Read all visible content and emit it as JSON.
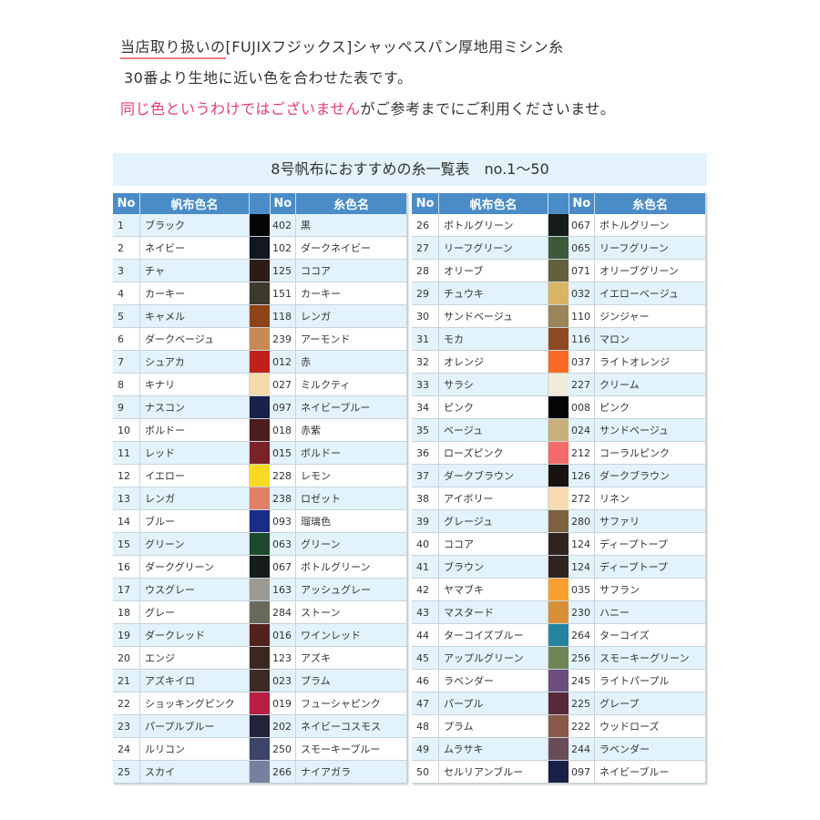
{
  "intro": {
    "line1_underlined": "当店取り扱いの",
    "line1_rest": "[FUJIXフジックス]シャッペスパン厚地用ミシン糸",
    "line2": "30番より生地に近い色を合わせた表です。",
    "line3_highlight": "同じ色というわけではございません",
    "line3_rest": "がご参考までにご利用くださいませ。"
  },
  "colors": {
    "header": "#4a8cc8",
    "highlight": "#e8387a",
    "band": "#e3f2fb",
    "row_alt": "#e3f3fc"
  },
  "table_title": "8号帆布におすすめの糸一覧表　no.1〜50",
  "headers": {
    "no": "No",
    "fabric": "帆布色名",
    "thread_no": "No",
    "thread": "糸色名"
  },
  "rows": [
    [
      "1",
      "ブラック",
      "#050505",
      "402",
      "黒"
    ],
    [
      "2",
      "ネイビー",
      "#131722",
      "102",
      "ダークネイビー"
    ],
    [
      "3",
      "チャ",
      "#2e1c14",
      "125",
      "ココア"
    ],
    [
      "4",
      "カーキー",
      "#3d3a2c",
      "151",
      "カーキー"
    ],
    [
      "5",
      "キャメル",
      "#8e4418",
      "118",
      "レンガ"
    ],
    [
      "6",
      "ダークベージュ",
      "#c58a55",
      "239",
      "アーモンド"
    ],
    [
      "7",
      "シュアカ",
      "#c0201c",
      "012",
      "赤"
    ],
    [
      "8",
      "キナリ",
      "#f6d9ab",
      "027",
      "ミルクティ"
    ],
    [
      "9",
      "ナスコン",
      "#17214a",
      "097",
      "ネイビーブルー"
    ],
    [
      "10",
      "ボルドー",
      "#4d1c1e",
      "018",
      "赤紫"
    ],
    [
      "11",
      "レッド",
      "#7a2228",
      "015",
      "ボルドー"
    ],
    [
      "12",
      "イエロー",
      "#f8da22",
      "228",
      "レモン"
    ],
    [
      "13",
      "レンガ",
      "#e08068",
      "238",
      "ロゼット"
    ],
    [
      "14",
      "ブルー",
      "#1b2c88",
      "093",
      "瑠璃色"
    ],
    [
      "15",
      "グリーン",
      "#1d4a2c",
      "063",
      "グリーン"
    ],
    [
      "16",
      "ダークグリーン",
      "#161c1a",
      "067",
      "ボトルグリーン"
    ],
    [
      "17",
      "ウスグレー",
      "#9c9a92",
      "163",
      "アッシュグレー"
    ],
    [
      "18",
      "グレー",
      "#6a6a5c",
      "284",
      "ストーン"
    ],
    [
      "19",
      "ダークレッド",
      "#52221e",
      "016",
      "ワインレッド"
    ],
    [
      "20",
      "エンジ",
      "#3c2620",
      "123",
      "アズキ"
    ],
    [
      "21",
      "アズキイロ",
      "#3e2a22",
      "023",
      "プラム"
    ],
    [
      "22",
      "ショッキングピンク",
      "#b81e44",
      "019",
      "フューシャピンク"
    ],
    [
      "23",
      "パープルブルー",
      "#23223a",
      "202",
      "ネイビーコスモス"
    ],
    [
      "24",
      "ルリコン",
      "#3c4468",
      "250",
      "スモーキーブルー"
    ],
    [
      "25",
      "スカイ",
      "#76809e",
      "266",
      "ナイアガラ"
    ],
    [
      "26",
      "ボトルグリーン",
      "#161c1a",
      "067",
      "ボトルグリーン"
    ],
    [
      "27",
      "リーフグリーン",
      "#3c5a3a",
      "065",
      "リーフグリーン"
    ],
    [
      "28",
      "オリーブ",
      "#65603c",
      "071",
      "オリーブグリーン"
    ],
    [
      "29",
      "チュウキ",
      "#d8b466",
      "032",
      "イエローベージュ"
    ],
    [
      "30",
      "サンドベージュ",
      "#9a8458",
      "110",
      "ジンジャー"
    ],
    [
      "31",
      "モカ",
      "#8e4a22",
      "116",
      "マロン"
    ],
    [
      "32",
      "オレンジ",
      "#fa6a24",
      "037",
      "ライトオレンジ"
    ],
    [
      "33",
      "サラシ",
      "#f0ead8",
      "227",
      "クリーム"
    ],
    [
      "34",
      "ピンク",
      "#050505",
      "008",
      "ピンク"
    ],
    [
      "35",
      "ベージュ",
      "#c8b07a",
      "024",
      "サンドベージュ"
    ],
    [
      "36",
      "ローズピンク",
      "#f46c6a",
      "212",
      "コーラルピンク"
    ],
    [
      "37",
      "ダークブラウン",
      "#181210",
      "126",
      "ダークブラウン"
    ],
    [
      "38",
      "アイボリー",
      "#f6dcb0",
      "272",
      "リネン"
    ],
    [
      "39",
      "グレージュ",
      "#7e6240",
      "280",
      "サファリ"
    ],
    [
      "40",
      "ココア",
      "#302420",
      "124",
      "ディープトープ"
    ],
    [
      "41",
      "ブラウン",
      "#302420",
      "124",
      "ディープトープ"
    ],
    [
      "42",
      "ヤマブキ",
      "#f8a030",
      "035",
      "サフラン"
    ],
    [
      "43",
      "マスタード",
      "#d89038",
      "230",
      "ハニー"
    ],
    [
      "44",
      "ターコイズブルー",
      "#24849e",
      "264",
      "ターコイズ"
    ],
    [
      "45",
      "アップルグリーン",
      "#6e8656",
      "256",
      "スモーキーグリーン"
    ],
    [
      "46",
      "ラベンダー",
      "#6a4e7e",
      "245",
      "ライトパープル"
    ],
    [
      "47",
      "パープル",
      "#582838",
      "225",
      "グレープ"
    ],
    [
      "48",
      "プラム",
      "#8a5848",
      "222",
      "ウッドローズ"
    ],
    [
      "49",
      "ムラサキ",
      "#684c56",
      "244",
      "ラベンダー"
    ],
    [
      "50",
      "セルリアンブルー",
      "#1a2048",
      "097",
      "ネイビーブルー"
    ]
  ]
}
